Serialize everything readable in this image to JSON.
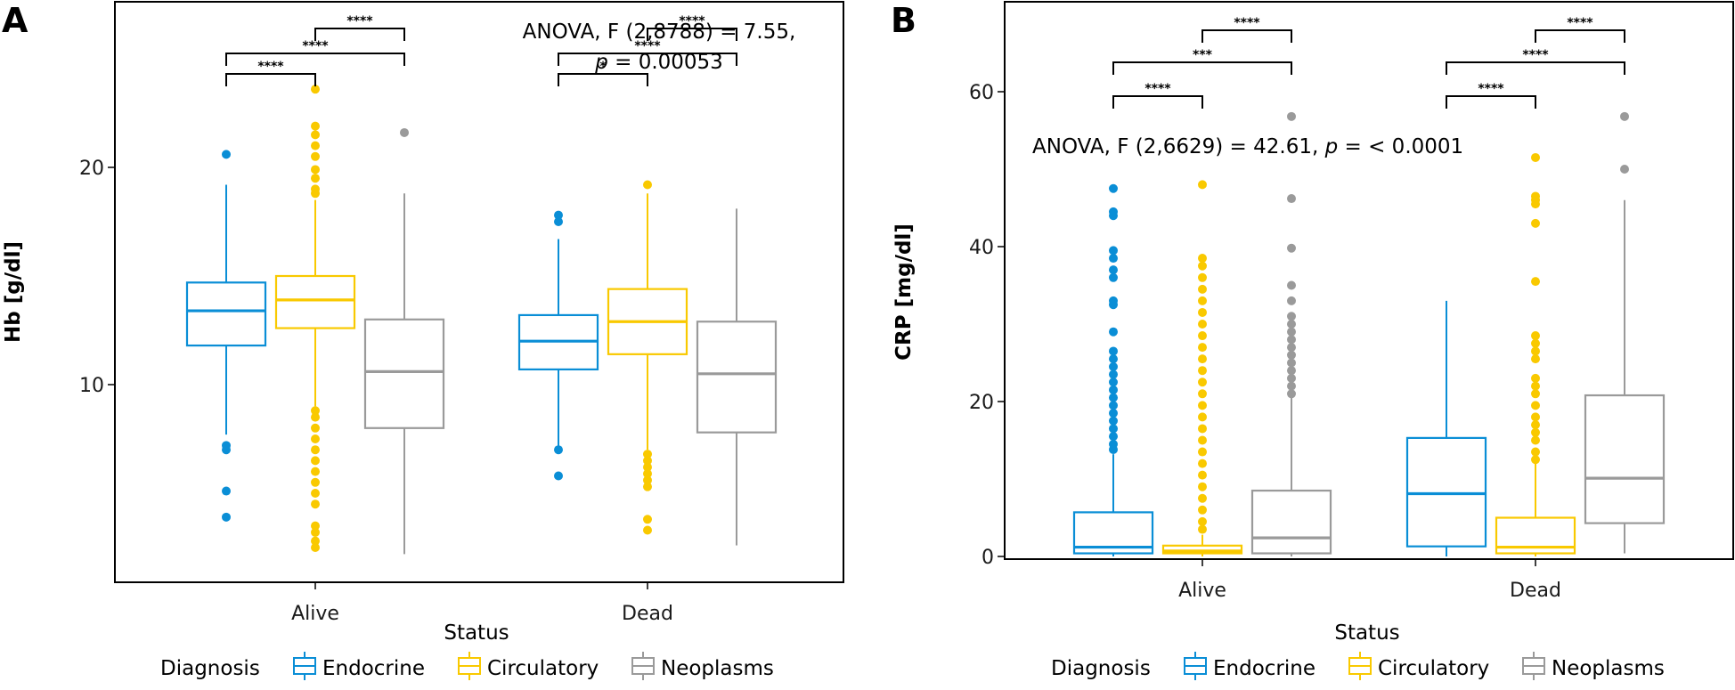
{
  "colors": {
    "Endocrine": "#0a8ed6",
    "Circulatory": "#f9c900",
    "Neoplasms": "#9a9a9a"
  },
  "legend": {
    "title": "Diagnosis",
    "items": [
      "Endocrine",
      "Circulatory",
      "Neoplasms"
    ]
  },
  "chart_data": [
    {
      "type": "box",
      "panel_label": "A",
      "xlabel": "Status",
      "ylabel": "Hb [g/dl]",
      "categories": [
        "Alive",
        "Dead"
      ],
      "groups": [
        "Endocrine",
        "Circulatory",
        "Neoplasms"
      ],
      "yticks": [
        10,
        20
      ],
      "ylim": [
        1.6,
        28.4
      ],
      "annotation_line1": "ANOVA, F (2,8788) = 7.55,",
      "annotation_line2_p": "p",
      "annotation_line2_rest": " = 0.00053",
      "boxes": [
        {
          "category": "Alive",
          "group": "Endocrine",
          "q1": 11.8,
          "median": 13.4,
          "q3": 14.7,
          "whisker_low": 7.7,
          "whisker_high": 19.2,
          "outliers": [
            20.6,
            7.2,
            7.0,
            5.1,
            3.9
          ]
        },
        {
          "category": "Alive",
          "group": "Circulatory",
          "q1": 12.6,
          "median": 13.9,
          "q3": 15.0,
          "whisker_low": 9.0,
          "whisker_high": 18.5,
          "outliers": [
            23.6,
            21.9,
            21.5,
            21.0,
            20.5,
            19.9,
            19.5,
            19.0,
            18.8,
            8.8,
            8.5,
            8.0,
            7.5,
            7.0,
            6.5,
            6.0,
            5.5,
            5.0,
            4.5,
            3.5,
            3.2,
            2.8,
            2.5
          ]
        },
        {
          "category": "Alive",
          "group": "Neoplasms",
          "q1": 8.0,
          "median": 10.6,
          "q3": 13.0,
          "whisker_low": 2.2,
          "whisker_high": 18.8,
          "outliers": [
            21.6
          ]
        },
        {
          "category": "Dead",
          "group": "Endocrine",
          "q1": 10.7,
          "median": 12.0,
          "q3": 13.2,
          "whisker_low": 7.1,
          "whisker_high": 16.7,
          "outliers": [
            17.8,
            17.5,
            7.0,
            5.8
          ]
        },
        {
          "category": "Dead",
          "group": "Circulatory",
          "q1": 11.4,
          "median": 12.9,
          "q3": 14.4,
          "whisker_low": 7.0,
          "whisker_high": 18.8,
          "outliers": [
            19.2,
            6.8,
            6.5,
            6.2,
            5.9,
            5.6,
            5.3,
            3.8,
            3.3
          ]
        },
        {
          "category": "Dead",
          "group": "Neoplasms",
          "q1": 7.8,
          "median": 10.5,
          "q3": 12.9,
          "whisker_low": 2.6,
          "whisker_high": 18.1,
          "outliers": []
        }
      ],
      "brackets": [
        {
          "category": "Alive",
          "from": "Endocrine",
          "to": "Circulatory",
          "label": "****",
          "level": 1
        },
        {
          "category": "Alive",
          "from": "Endocrine",
          "to": "Neoplasms",
          "label": "****",
          "level": 2
        },
        {
          "category": "Alive",
          "from": "Circulatory",
          "to": "Neoplasms",
          "label": "****",
          "level": 3
        },
        {
          "category": "Dead",
          "from": "Endocrine",
          "to": "Circulatory",
          "label": "*",
          "level": 1
        },
        {
          "category": "Dead",
          "from": "Endocrine",
          "to": "Neoplasms",
          "label": "****",
          "level": 2
        },
        {
          "category": "Dead",
          "from": "Circulatory",
          "to": "Neoplasms",
          "label": "****",
          "level": 3
        }
      ]
    },
    {
      "type": "box",
      "panel_label": "B",
      "xlabel": "Status",
      "ylabel": "CRP [mg/dl]",
      "categories": [
        "Alive",
        "Dead"
      ],
      "groups": [
        "Endocrine",
        "Circulatory",
        "Neoplasms"
      ],
      "yticks": [
        0,
        20,
        40,
        60
      ],
      "ylim": [
        -3,
        72
      ],
      "annotation_line1": "ANOVA, F (2,6629) = 42.61, ",
      "annotation_line2_p": "p",
      "annotation_line2_rest": " = < 0.0001",
      "boxes": [
        {
          "category": "Alive",
          "group": "Endocrine",
          "q1": 0.4,
          "median": 1.2,
          "q3": 5.7,
          "whisker_low": 0.0,
          "whisker_high": 13.2,
          "outliers": [
            47.5,
            44.5,
            44.0,
            39.5,
            38.5,
            37.0,
            36.0,
            33.0,
            32.5,
            29.0,
            26.5,
            25.5,
            24.5,
            23.5,
            22.5,
            21.5,
            20.5,
            19.5,
            18.5,
            17.5,
            16.5,
            15.5,
            14.5,
            13.8
          ]
        },
        {
          "category": "Alive",
          "group": "Circulatory",
          "q1": 0.4,
          "median": 0.7,
          "q3": 1.4,
          "whisker_low": 0.0,
          "whisker_high": 2.8,
          "outliers": [
            48.0,
            38.5,
            37.5,
            36.0,
            34.5,
            33.0,
            31.5,
            30.0,
            28.5,
            27.0,
            25.5,
            24.0,
            22.5,
            21.0,
            19.5,
            18.0,
            16.5,
            15.0,
            13.5,
            12.0,
            10.5,
            9.0,
            7.5,
            6.0,
            4.5,
            3.5
          ]
        },
        {
          "category": "Alive",
          "group": "Neoplasms",
          "q1": 0.4,
          "median": 2.4,
          "q3": 8.5,
          "whisker_low": 0.0,
          "whisker_high": 20.5,
          "outliers": [
            56.8,
            46.2,
            39.8,
            35.0,
            33.0,
            31.0,
            30.0,
            29.0,
            28.0,
            27.0,
            26.0,
            25.0,
            24.0,
            23.0,
            22.0,
            21.0
          ]
        },
        {
          "category": "Dead",
          "group": "Endocrine",
          "q1": 1.3,
          "median": 8.1,
          "q3": 15.3,
          "whisker_low": 0.0,
          "whisker_high": 33.0,
          "outliers": []
        },
        {
          "category": "Dead",
          "group": "Circulatory",
          "q1": 0.4,
          "median": 1.2,
          "q3": 5.0,
          "whisker_low": 0.0,
          "whisker_high": 12.0,
          "outliers": [
            51.5,
            46.5,
            46.0,
            45.5,
            43.0,
            35.5,
            28.5,
            27.5,
            26.5,
            25.5,
            23.0,
            22.0,
            21.0,
            19.5,
            18.0,
            17.0,
            16.0,
            15.0,
            13.5,
            12.5
          ]
        },
        {
          "category": "Dead",
          "group": "Neoplasms",
          "q1": 4.3,
          "median": 10.1,
          "q3": 20.8,
          "whisker_low": 0.4,
          "whisker_high": 46.0,
          "outliers": [
            56.8,
            50.0
          ]
        }
      ],
      "brackets": [
        {
          "category": "Alive",
          "from": "Endocrine",
          "to": "Circulatory",
          "label": "****",
          "level": 1
        },
        {
          "category": "Alive",
          "from": "Endocrine",
          "to": "Neoplasms",
          "label": "***",
          "level": 2
        },
        {
          "category": "Alive",
          "from": "Circulatory",
          "to": "Neoplasms",
          "label": "****",
          "level": 3
        },
        {
          "category": "Dead",
          "from": "Endocrine",
          "to": "Circulatory",
          "label": "****",
          "level": 1
        },
        {
          "category": "Dead",
          "from": "Endocrine",
          "to": "Neoplasms",
          "label": "****",
          "level": 2
        },
        {
          "category": "Dead",
          "from": "Circulatory",
          "to": "Neoplasms",
          "label": "****",
          "level": 3
        }
      ]
    }
  ]
}
